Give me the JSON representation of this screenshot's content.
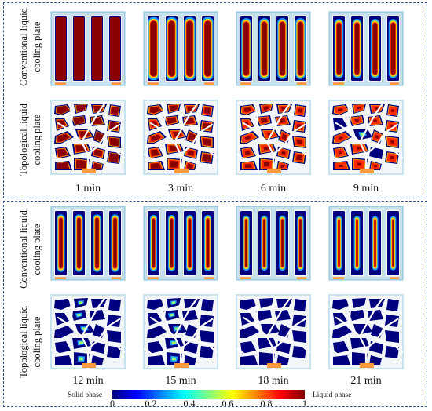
{
  "row_labels": {
    "conventional": [
      "Conventional liquid",
      "cooling plate"
    ],
    "topological": [
      "Topological liquid",
      "cooling plate"
    ]
  },
  "times": [
    "1 min",
    "3 min",
    "6 min",
    "9 min",
    "12 min",
    "15 min",
    "18 min",
    "21 min"
  ],
  "progress": [
    0.0,
    0.12,
    0.3,
    0.45,
    0.6,
    0.72,
    0.82,
    0.9
  ],
  "colorbar": {
    "left_label": "Solid phase",
    "right_label": "Liquid phase",
    "ticks": [
      "0",
      "0.2",
      "0.4",
      "0.6",
      "0.8",
      "1"
    ],
    "colors": [
      "#00007f",
      "#0000ff",
      "#0080ff",
      "#00ffff",
      "#80ff80",
      "#ffff00",
      "#ff8000",
      "#ff0000",
      "#7f0000"
    ]
  },
  "colors": {
    "panel_border": "#2b4f8c",
    "channel": "#e6eef3",
    "frame": "#c7e3f0"
  }
}
